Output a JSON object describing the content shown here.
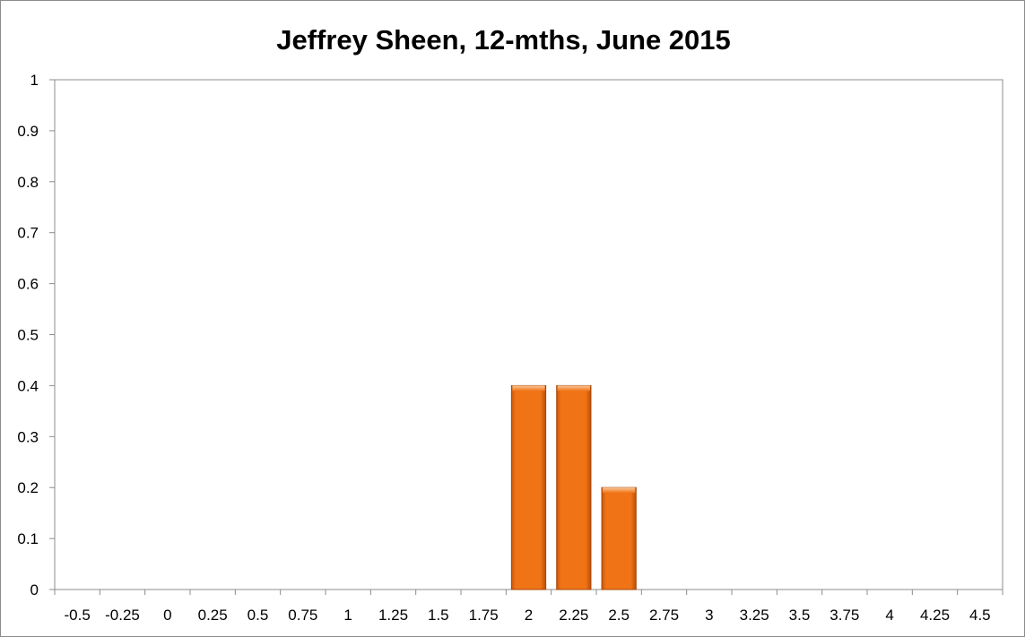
{
  "chart_data": {
    "type": "bar",
    "title": "Jeffrey Sheen, 12-mths, June 2015",
    "xlabel": "",
    "ylabel": "",
    "categories": [
      "-0.5",
      "-0.25",
      "0",
      "0.25",
      "0.5",
      "0.75",
      "1",
      "1.25",
      "1.5",
      "1.75",
      "2",
      "2.25",
      "2.5",
      "2.75",
      "3",
      "3.25",
      "3.5",
      "3.75",
      "4",
      "4.25",
      "4.5"
    ],
    "values": [
      0,
      0,
      0,
      0,
      0,
      0,
      0,
      0,
      0,
      0,
      0.4,
      0.4,
      0.2,
      0,
      0,
      0,
      0,
      0,
      0,
      0,
      0
    ],
    "ylim": [
      0,
      1
    ],
    "yticks": [
      "0",
      "0.1",
      "0.2",
      "0.3",
      "0.4",
      "0.5",
      "0.6",
      "0.7",
      "0.8",
      "0.9",
      "1"
    ],
    "grid": false,
    "legend": "none",
    "bar_color": "#f07315"
  }
}
